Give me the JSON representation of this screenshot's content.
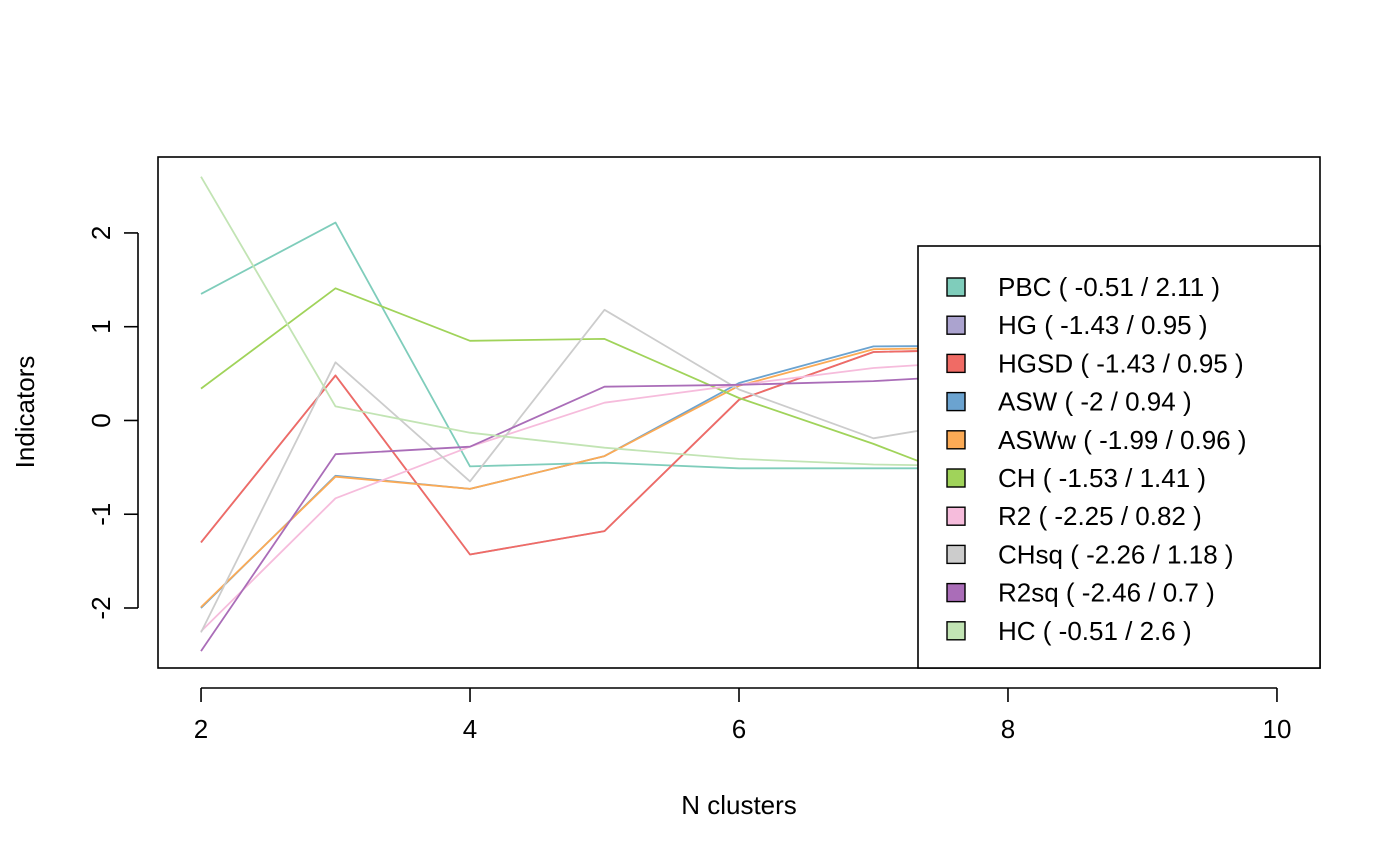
{
  "chart_data": {
    "type": "line",
    "title": "",
    "xlabel": "N clusters",
    "ylabel": "Indicators",
    "xlim": [
      1.68,
      10.32
    ],
    "ylim": [
      -2.64,
      2.81
    ],
    "x_ticks": [
      2,
      4,
      6,
      8,
      10
    ],
    "y_ticks": [
      -2,
      -1,
      0,
      1,
      2
    ],
    "grid": false,
    "legend_position": "right",
    "x": [
      2,
      3,
      4,
      5,
      6,
      7,
      8,
      9,
      10
    ],
    "series": [
      {
        "name": "PBC ( -0.51 / 2.11 )",
        "color": "#7FCDBB",
        "values": [
          1.35,
          2.11,
          -0.49,
          -0.45,
          -0.51,
          -0.51,
          -0.51,
          -0.51,
          -0.51
        ]
      },
      {
        "name": "HG ( -1.43 / 0.95 )",
        "color": "#ABA3CF",
        "values": [
          -1.3,
          0.48,
          -1.43,
          -1.18,
          0.22,
          0.73,
          0.76,
          0.85,
          0.95
        ]
      },
      {
        "name": "HGSD ( -1.43 / 0.95 )",
        "color": "#F06B65",
        "values": [
          -1.3,
          0.48,
          -1.43,
          -1.18,
          0.22,
          0.73,
          0.76,
          0.85,
          0.95
        ]
      },
      {
        "name": "ASW ( -2 / 0.94 )",
        "color": "#6BA3D0",
        "values": [
          -2.0,
          -0.59,
          -0.73,
          -0.38,
          0.4,
          0.79,
          0.8,
          0.88,
          0.94
        ]
      },
      {
        "name": "ASWw ( -1.99 / 0.96 )",
        "color": "#FBAA55",
        "values": [
          -1.99,
          -0.6,
          -0.73,
          -0.38,
          0.37,
          0.76,
          0.78,
          0.88,
          0.96
        ]
      },
      {
        "name": "CH ( -1.53 / 1.41 )",
        "color": "#A0D35A",
        "values": [
          0.34,
          1.41,
          0.85,
          0.87,
          0.24,
          -0.25,
          -0.8,
          -1.2,
          -1.53
        ]
      },
      {
        "name": "R2 ( -2.25 / 0.82 )",
        "color": "#F6BCDC",
        "values": [
          -2.25,
          -0.83,
          -0.28,
          0.19,
          0.38,
          0.56,
          0.65,
          0.74,
          0.82
        ]
      },
      {
        "name": "CHsq ( -2.26 / 1.18 )",
        "color": "#CCCCCC",
        "values": [
          -2.26,
          0.62,
          -0.65,
          1.18,
          0.33,
          -0.19,
          0.05,
          -0.6,
          -1.0
        ]
      },
      {
        "name": "R2sq ( -2.46 / 0.7 )",
        "color": "#AA6DB8",
        "values": [
          -2.46,
          -0.36,
          -0.28,
          0.36,
          0.38,
          0.42,
          0.5,
          0.6,
          0.7
        ]
      },
      {
        "name": "HC ( -0.51 / 2.6 )",
        "color": "#C2E4B4",
        "values": [
          2.6,
          0.15,
          -0.13,
          -0.29,
          -0.41,
          -0.47,
          -0.49,
          -0.5,
          -0.51
        ]
      }
    ]
  }
}
